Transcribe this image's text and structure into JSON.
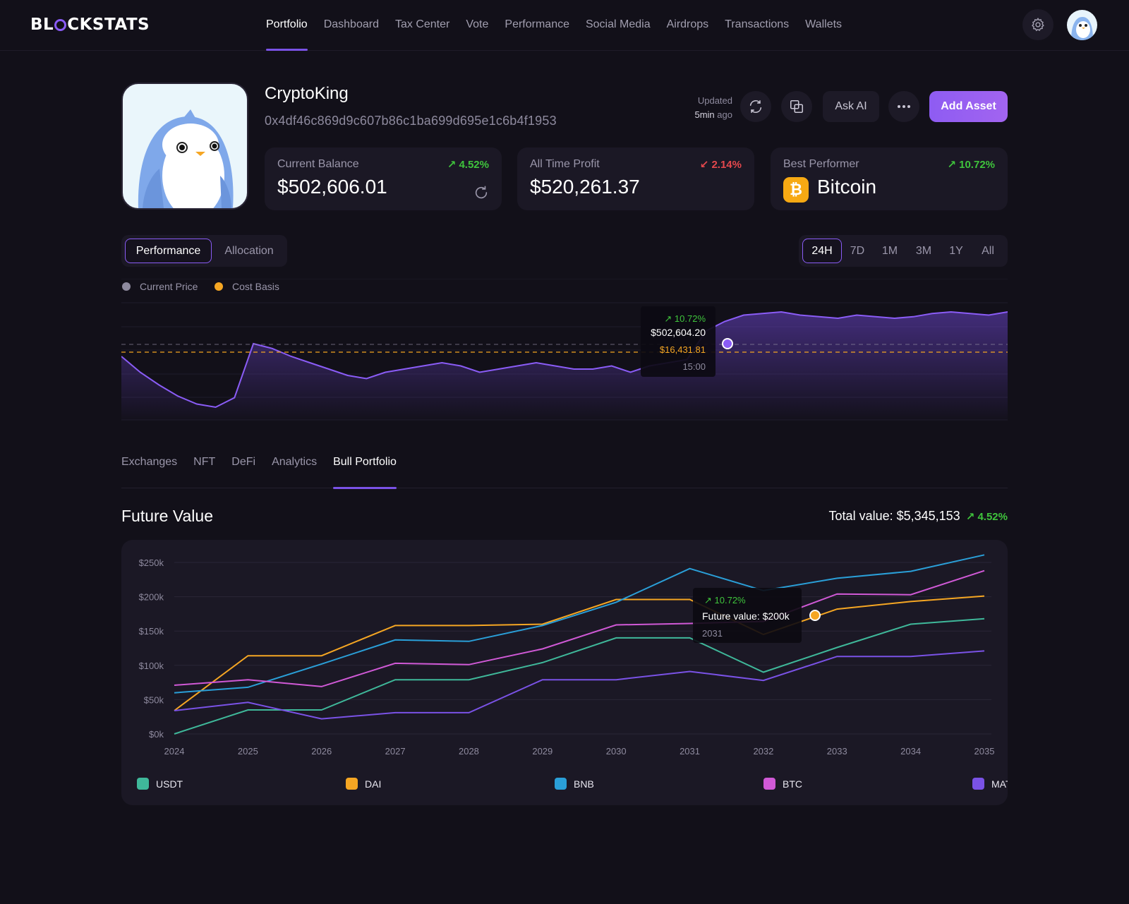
{
  "brand": {
    "logo_pre": "BL",
    "logo_post": "CKSTATS"
  },
  "nav": [
    "Portfolio",
    "Dashboard",
    "Tax Center",
    "Vote",
    "Performance",
    "Social Media",
    "Airdrops",
    "Transactions",
    "Wallets"
  ],
  "profile": {
    "name": "CryptoKing",
    "address": "0x4df46c869d9c607b86c1ba699d695e1c6b4f1953",
    "updated_label": "Updated",
    "updated_time": "5min",
    "updated_suffix": "ago"
  },
  "actions": {
    "ask_ai": "Ask AI",
    "add_asset": "Add Asset"
  },
  "stats": {
    "balance": {
      "label": "Current Balance",
      "change": "4.52%",
      "value": "$502,606.01"
    },
    "profit": {
      "label": "All Time Profit",
      "change": "2.14%",
      "value": "$520,261.37"
    },
    "best": {
      "label": "Best Performer",
      "change": "10.72%",
      "value": "Bitcoin"
    }
  },
  "view_toggle": [
    "Performance",
    "Allocation"
  ],
  "ranges": [
    "24H",
    "7D",
    "1M",
    "3M",
    "1Y",
    "All"
  ],
  "legend": {
    "current": "Current Price",
    "cost": "Cost Basis"
  },
  "perf_tooltip": {
    "change": "10.72%",
    "value": "$502,604.20",
    "cost": "$16,431.81",
    "time": "15:00"
  },
  "tabs": [
    "Exchanges",
    "NFT",
    "DeFi",
    "Analytics",
    "Bull Portfolio"
  ],
  "future": {
    "title": "Future Value",
    "total": "Total value: $5,345,153",
    "change": "4.52%"
  },
  "fv_tooltip": {
    "change": "10.72%",
    "value": "Future value: $200k",
    "year": "2031"
  },
  "colors": {
    "accent": "#8a5cf6",
    "up": "#3fc43c",
    "down": "#e5484d",
    "cost": "#f5a623"
  },
  "chart_data": [
    {
      "type": "area",
      "series": [
        {
          "name": "Current Price",
          "values": [
            70,
            60,
            52,
            45,
            40,
            38,
            44,
            78,
            75,
            70,
            66,
            62,
            58,
            56,
            60,
            62,
            64,
            66,
            64,
            60,
            62,
            64,
            66,
            64,
            62,
            62,
            64,
            60,
            64,
            66,
            68,
            86,
            92,
            96,
            97,
            98,
            96,
            95,
            94,
            96,
            95,
            94,
            95,
            97,
            98,
            97,
            96,
            98
          ]
        },
        {
          "name": "Cost Basis",
          "values": [
            82,
            82
          ]
        }
      ]
    },
    {
      "type": "line",
      "x": [
        2024,
        2025,
        2026,
        2027,
        2028,
        2029,
        2030,
        2031,
        2032,
        2033,
        2034,
        2035
      ],
      "y_ticks": [
        "$250k",
        "$200k",
        "$150k",
        "$100k",
        "$50k",
        "$0k"
      ],
      "ylim": [
        0,
        250
      ],
      "series": [
        {
          "name": "USDT",
          "color": "#3fb89a",
          "values": [
            0,
            35,
            35,
            79,
            79,
            104,
            140,
            140,
            90,
            126,
            160,
            168
          ]
        },
        {
          "name": "DAI",
          "color": "#f5a623",
          "values": [
            34,
            114,
            114,
            158,
            158,
            160,
            196,
            196,
            145,
            182,
            193,
            201
          ]
        },
        {
          "name": "BNB",
          "color": "#2a9fd8",
          "values": [
            60,
            68,
            102,
            137,
            135,
            158,
            192,
            241,
            209,
            227,
            237,
            261
          ]
        },
        {
          "name": "BTC",
          "color": "#d059d6",
          "values": [
            71,
            79,
            69,
            103,
            101,
            124,
            159,
            161,
            164,
            204,
            203,
            238
          ]
        },
        {
          "name": "MATIC",
          "color": "#7a52e6",
          "values": [
            34,
            46,
            22,
            31,
            31,
            79,
            79,
            91,
            78,
            113,
            113,
            121
          ]
        }
      ]
    }
  ]
}
